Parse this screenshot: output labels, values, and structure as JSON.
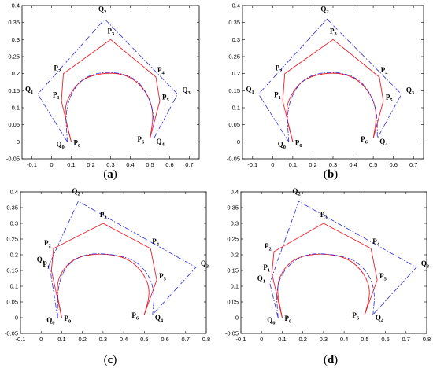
{
  "chart_data": [
    {
      "type": "line",
      "panel_label": "a",
      "xlim": [
        -0.15,
        0.75
      ],
      "ylim": [
        -0.05,
        0.4
      ],
      "xticks": [
        -0.1,
        0,
        0.1,
        0.2,
        0.3,
        0.4,
        0.5,
        0.6,
        0.7
      ],
      "yticks": [
        -0.05,
        0,
        0.05,
        0.1,
        0.15,
        0.2,
        0.25,
        0.3,
        0.35,
        0.4
      ],
      "grid": false,
      "P": [
        [
          0.1,
          0.0
        ],
        [
          0.05,
          0.12
        ],
        [
          0.06,
          0.2
        ],
        [
          0.3,
          0.3
        ],
        [
          0.53,
          0.19
        ],
        [
          0.55,
          0.12
        ],
        [
          0.5,
          0.01
        ]
      ],
      "Q": [
        [
          0.08,
          0.0
        ],
        [
          -0.07,
          0.14
        ],
        [
          0.27,
          0.36
        ],
        [
          0.64,
          0.14
        ],
        [
          0.52,
          0.01
        ]
      ],
      "P_labels": [
        "P",
        "0",
        "P",
        "1",
        "P",
        "2",
        "P",
        "3",
        "P",
        "4",
        "P",
        "5",
        "P",
        "6"
      ],
      "Q_labels": [
        "Q",
        "0",
        "Q",
        "1",
        "Q",
        "2",
        "Q",
        "3",
        "Q",
        "4"
      ],
      "curve_red": [
        [
          0.1,
          0.0
        ],
        [
          0.06,
          0.09
        ],
        [
          0.1,
          0.15
        ],
        [
          0.17,
          0.19
        ],
        [
          0.3,
          0.205
        ],
        [
          0.41,
          0.19
        ],
        [
          0.49,
          0.14
        ],
        [
          0.52,
          0.08
        ],
        [
          0.5,
          0.01
        ]
      ],
      "curve_blue": [
        [
          0.08,
          0.0
        ],
        [
          0.07,
          0.09
        ],
        [
          0.11,
          0.155
        ],
        [
          0.18,
          0.195
        ],
        [
          0.3,
          0.207
        ],
        [
          0.42,
          0.19
        ],
        [
          0.49,
          0.14
        ],
        [
          0.52,
          0.08
        ],
        [
          0.52,
          0.01
        ]
      ]
    },
    {
      "type": "line",
      "panel_label": "b",
      "xlim": [
        -0.15,
        0.75
      ],
      "ylim": [
        -0.05,
        0.4
      ],
      "xticks": [
        -0.1,
        0,
        0.1,
        0.2,
        0.3,
        0.4,
        0.5,
        0.6,
        0.7
      ],
      "yticks": [
        -0.05,
        0,
        0.05,
        0.1,
        0.15,
        0.2,
        0.25,
        0.3,
        0.35,
        0.4
      ],
      "grid": false,
      "P": [
        [
          0.1,
          0.0
        ],
        [
          0.05,
          0.12
        ],
        [
          0.06,
          0.2
        ],
        [
          0.3,
          0.3
        ],
        [
          0.53,
          0.19
        ],
        [
          0.55,
          0.12
        ],
        [
          0.5,
          0.01
        ]
      ],
      "Q": [
        [
          0.08,
          0.0
        ],
        [
          -0.07,
          0.14
        ],
        [
          0.27,
          0.36
        ],
        [
          0.64,
          0.14
        ],
        [
          0.52,
          0.01
        ]
      ],
      "P_labels": [
        "P",
        "0",
        "P",
        "1",
        "P",
        "2",
        "P",
        "3",
        "P",
        "4",
        "P",
        "5",
        "P",
        "6"
      ],
      "Q_labels": [
        "Q",
        "0",
        "Q",
        "1",
        "Q",
        "2",
        "Q",
        "3",
        "Q",
        "4"
      ],
      "curve_red": [
        [
          0.1,
          0.0
        ],
        [
          0.06,
          0.09
        ],
        [
          0.1,
          0.15
        ],
        [
          0.17,
          0.19
        ],
        [
          0.3,
          0.205
        ],
        [
          0.41,
          0.19
        ],
        [
          0.49,
          0.14
        ],
        [
          0.52,
          0.08
        ],
        [
          0.5,
          0.01
        ]
      ],
      "curve_blue": [
        [
          0.08,
          0.0
        ],
        [
          0.07,
          0.09
        ],
        [
          0.11,
          0.155
        ],
        [
          0.18,
          0.195
        ],
        [
          0.3,
          0.207
        ],
        [
          0.42,
          0.19
        ],
        [
          0.49,
          0.14
        ],
        [
          0.52,
          0.08
        ],
        [
          0.52,
          0.01
        ]
      ]
    },
    {
      "type": "line",
      "panel_label": "c",
      "xlim": [
        -0.1,
        0.8
      ],
      "ylim": [
        -0.05,
        0.4
      ],
      "xticks": [
        -0.1,
        0,
        0.1,
        0.2,
        0.3,
        0.4,
        0.5,
        0.6,
        0.7,
        0.8
      ],
      "yticks": [
        -0.05,
        0,
        0.05,
        0.1,
        0.15,
        0.2,
        0.25,
        0.3,
        0.35,
        0.4
      ],
      "grid": false,
      "P": [
        [
          0.1,
          0.0
        ],
        [
          0.05,
          0.15
        ],
        [
          0.06,
          0.22
        ],
        [
          0.3,
          0.3
        ],
        [
          0.53,
          0.22
        ],
        [
          0.56,
          0.12
        ],
        [
          0.5,
          0.01
        ]
      ],
      "Q": [
        [
          0.08,
          0.0
        ],
        [
          0.04,
          0.17
        ],
        [
          0.18,
          0.37
        ],
        [
          0.75,
          0.16
        ],
        [
          0.54,
          0.01
        ]
      ],
      "P_labels": [
        "P",
        "0",
        "P",
        "1",
        "P",
        "2",
        "P",
        "3",
        "P",
        "4",
        "P",
        "5",
        "P",
        "6"
      ],
      "Q_labels": [
        "Q",
        "0",
        "Q",
        "1",
        "Q",
        "2",
        "Q",
        "3",
        "Q",
        "4"
      ],
      "curve_red": [
        [
          0.1,
          0.0
        ],
        [
          0.07,
          0.1
        ],
        [
          0.11,
          0.16
        ],
        [
          0.18,
          0.195
        ],
        [
          0.3,
          0.205
        ],
        [
          0.42,
          0.19
        ],
        [
          0.5,
          0.14
        ],
        [
          0.53,
          0.08
        ],
        [
          0.5,
          0.01
        ]
      ],
      "curve_blue": [
        [
          0.08,
          0.0
        ],
        [
          0.08,
          0.1
        ],
        [
          0.12,
          0.165
        ],
        [
          0.2,
          0.2
        ],
        [
          0.3,
          0.205
        ],
        [
          0.44,
          0.19
        ],
        [
          0.52,
          0.14
        ],
        [
          0.55,
          0.08
        ],
        [
          0.54,
          0.01
        ]
      ]
    },
    {
      "type": "line",
      "panel_label": "d",
      "xlim": [
        -0.1,
        0.8
      ],
      "ylim": [
        -0.05,
        0.4
      ],
      "xticks": [
        -0.1,
        0,
        0.1,
        0.2,
        0.3,
        0.4,
        0.5,
        0.6,
        0.7,
        0.8
      ],
      "yticks": [
        -0.05,
        0,
        0.05,
        0.1,
        0.15,
        0.2,
        0.25,
        0.3,
        0.35,
        0.4
      ],
      "grid": false,
      "P": [
        [
          0.1,
          0.0
        ],
        [
          0.05,
          0.14
        ],
        [
          0.06,
          0.21
        ],
        [
          0.3,
          0.3
        ],
        [
          0.53,
          0.22
        ],
        [
          0.56,
          0.12
        ],
        [
          0.5,
          0.01
        ]
      ],
      "Q": [
        [
          0.08,
          0.0
        ],
        [
          0.04,
          0.11
        ],
        [
          0.18,
          0.37
        ],
        [
          0.75,
          0.16
        ],
        [
          0.54,
          0.01
        ]
      ],
      "P_labels": [
        "P",
        "0",
        "P",
        "1",
        "P",
        "2",
        "P",
        "3",
        "P",
        "4",
        "P",
        "5",
        "P",
        "6"
      ],
      "Q_labels": [
        "Q",
        "0",
        "Q",
        "1",
        "Q",
        "2",
        "Q",
        "3",
        "Q",
        "4"
      ],
      "curve_red": [
        [
          0.1,
          0.0
        ],
        [
          0.07,
          0.1
        ],
        [
          0.11,
          0.16
        ],
        [
          0.18,
          0.195
        ],
        [
          0.3,
          0.205
        ],
        [
          0.42,
          0.19
        ],
        [
          0.5,
          0.14
        ],
        [
          0.53,
          0.08
        ],
        [
          0.5,
          0.01
        ]
      ],
      "curve_blue": [
        [
          0.08,
          0.0
        ],
        [
          0.07,
          0.09
        ],
        [
          0.11,
          0.155
        ],
        [
          0.2,
          0.2
        ],
        [
          0.3,
          0.205
        ],
        [
          0.44,
          0.19
        ],
        [
          0.52,
          0.14
        ],
        [
          0.55,
          0.08
        ],
        [
          0.54,
          0.01
        ]
      ]
    }
  ],
  "colors": {
    "red": "#e8202a",
    "blue": "#2a2ae0",
    "axis": "#000000"
  },
  "label_parens": [
    "(",
    ")"
  ]
}
